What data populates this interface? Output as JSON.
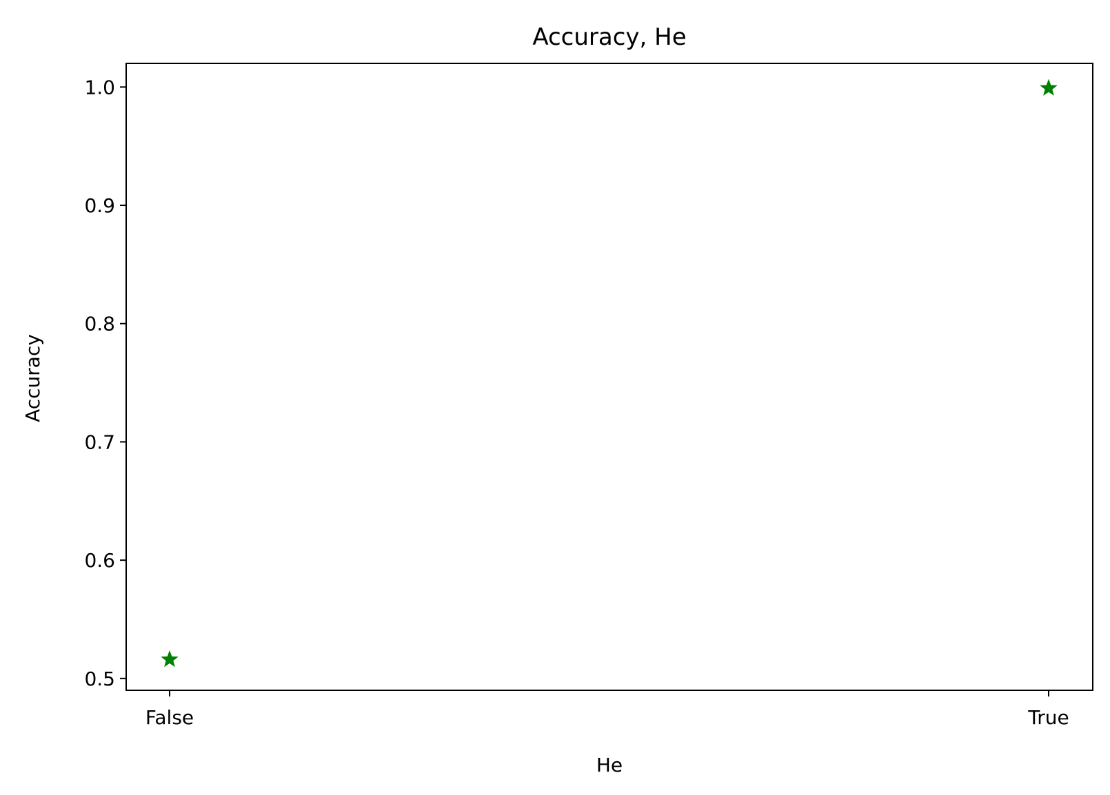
{
  "chart_data": {
    "type": "scatter",
    "title": "Accuracy, He",
    "xlabel": "He",
    "ylabel": "Accuracy",
    "categories": [
      "False",
      "True"
    ],
    "series": [
      {
        "name": "Accuracy",
        "marker": "star",
        "color": "#008000",
        "values": [
          0.516,
          0.999
        ]
      }
    ],
    "ylim": [
      0.49,
      1.02
    ],
    "yticks": [
      0.5,
      0.6,
      0.7,
      0.8,
      0.9,
      1.0
    ],
    "ytick_labels": [
      "0.5",
      "0.6",
      "0.7",
      "0.8",
      "0.9",
      "1.0"
    ],
    "grid": false
  }
}
